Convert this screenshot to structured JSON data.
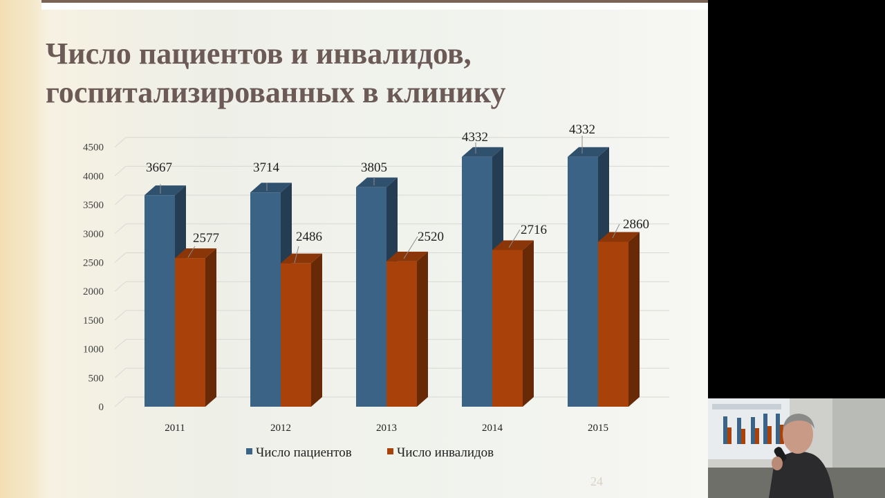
{
  "title_lines": [
    "Число пациентов и инвалидов,",
    "госпитализированных в клинику"
  ],
  "slide_number": "24",
  "chart_data": {
    "type": "bar",
    "title": "",
    "categories": [
      "2011",
      "2012",
      "2013",
      "2014",
      "2015"
    ],
    "series": [
      {
        "name": "Число пациентов",
        "values": [
          3667,
          3714,
          3805,
          4332,
          4332
        ],
        "color": "#3a6385"
      },
      {
        "name": "Число инвалидов",
        "values": [
          2577,
          2486,
          2520,
          2716,
          2860
        ],
        "color": "#a8420a"
      }
    ],
    "yticks": [
      "0",
      "500",
      "1000",
      "1500",
      "2000",
      "2500",
      "3000",
      "3500",
      "4000",
      "4500"
    ],
    "ylim": [
      0,
      4500
    ],
    "grid": true,
    "style": "3d-column",
    "legend_position": "bottom",
    "xlabel": "",
    "ylabel": ""
  },
  "webcam": {
    "description_icon": "presenter-video-icon"
  }
}
